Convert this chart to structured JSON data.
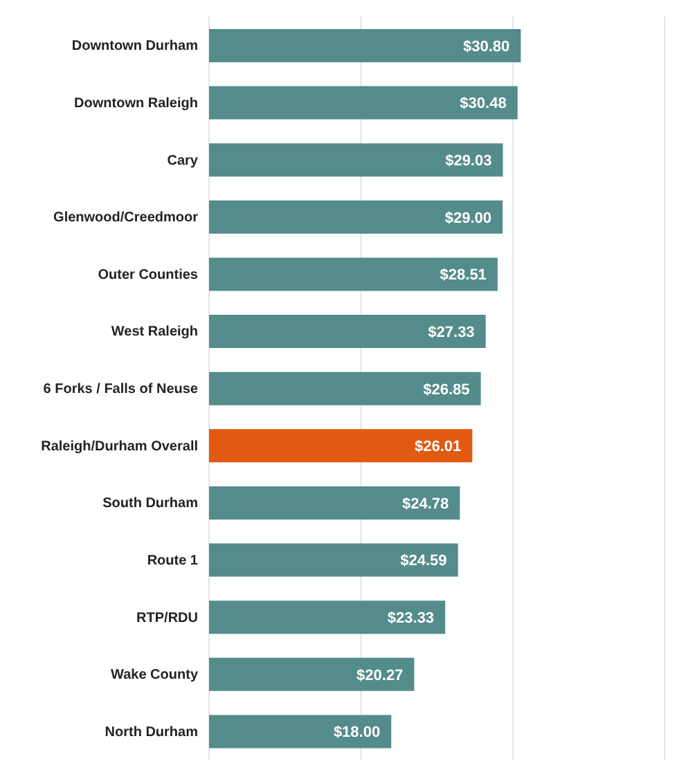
{
  "chart_data": {
    "type": "bar",
    "orientation": "horizontal",
    "categories": [
      "Downtown Durham",
      "Downtown Raleigh",
      "Cary",
      "Glenwood/Creedmoor",
      "Outer Counties",
      "West Raleigh",
      "6 Forks / Falls of Neuse",
      "Raleigh/Durham Overall",
      "South Durham",
      "Route 1",
      "RTP/RDU",
      "Wake County",
      "North Durham"
    ],
    "values": [
      30.8,
      30.48,
      29.03,
      29.0,
      28.51,
      27.33,
      26.85,
      26.01,
      24.78,
      24.59,
      23.33,
      20.27,
      18.0
    ],
    "value_labels": [
      "$30.80",
      "$30.48",
      "$29.03",
      "$29.00",
      "$28.51",
      "$27.33",
      "$26.85",
      "$26.01",
      "$24.78",
      "$24.59",
      "$23.33",
      "$20.27",
      "$18.00"
    ],
    "colors": [
      "#548b8b",
      "#548b8b",
      "#548b8b",
      "#548b8b",
      "#548b8b",
      "#548b8b",
      "#548b8b",
      "#e05a12",
      "#548b8b",
      "#548b8b",
      "#548b8b",
      "#548b8b",
      "#548b8b"
    ],
    "xlim": [
      0,
      45
    ],
    "xticks": [
      {
        "value": 0,
        "label": null
      },
      {
        "value": 15,
        "label": null
      },
      {
        "value": 30,
        "label": null
      },
      {
        "value": 45,
        "label": null
      }
    ],
    "tick_labels": "y",
    "grid": "x"
  }
}
